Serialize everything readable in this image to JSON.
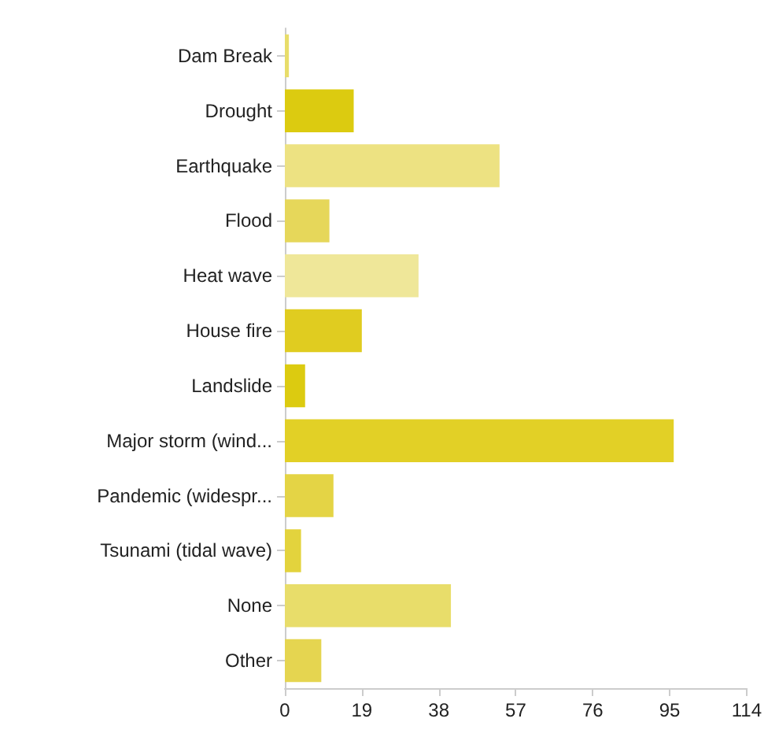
{
  "chart_data": {
    "type": "bar",
    "orientation": "horizontal",
    "categories": [
      "Dam Break",
      "Drought",
      "Earthquake",
      "Flood",
      "Heat wave",
      "House fire",
      "Landslide",
      "Major storm (wind...",
      "Pandemic (widespr...",
      "Tsunami (tidal wave)",
      "None",
      "Other"
    ],
    "values": [
      1,
      17,
      53,
      11,
      33,
      19,
      5,
      96,
      12,
      4,
      41,
      9
    ],
    "colors": [
      "#e8dd6a",
      "#dccb10",
      "#ede282",
      "#e6d75a",
      "#efe799",
      "#e0cc20",
      "#dccb10",
      "#e2d026",
      "#e4d445",
      "#e3d33d",
      "#e8dd6a",
      "#e5d550"
    ],
    "xlim": [
      0,
      114
    ],
    "xticks": [
      0,
      19,
      38,
      57,
      76,
      95,
      114
    ],
    "grid": false
  }
}
